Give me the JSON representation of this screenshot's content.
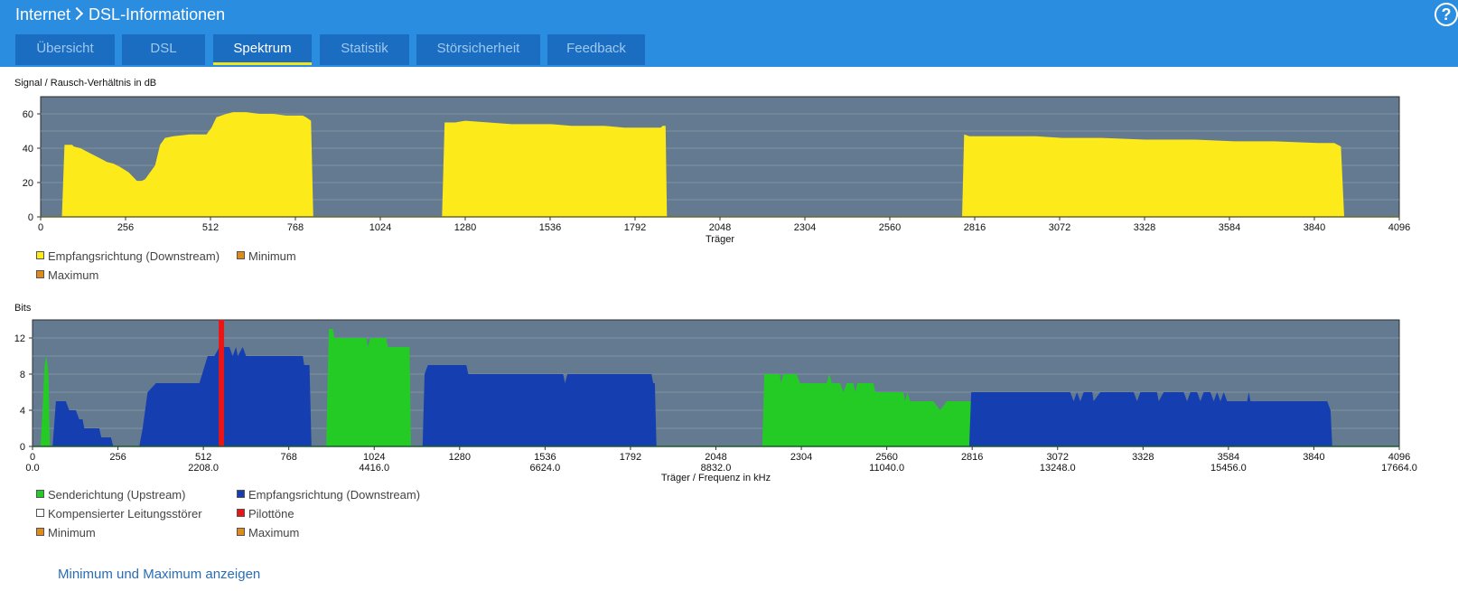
{
  "breadcrumb": {
    "parent": "Internet",
    "current": "DSL-Informationen"
  },
  "help_label": "?",
  "tabs": [
    {
      "label": "Übersicht",
      "active": false
    },
    {
      "label": "DSL",
      "active": false
    },
    {
      "label": "Spektrum",
      "active": true
    },
    {
      "label": "Statistik",
      "active": false
    },
    {
      "label": "Störsicherheit",
      "active": false
    },
    {
      "label": "Feedback",
      "active": false
    }
  ],
  "colors": {
    "header_bg": "#2a8de0",
    "tab_bg": "#1a6dc0",
    "tab_active_underline": "#f3e51a",
    "plot_bg": "#647a90",
    "snr_fill": "#fcea1a",
    "upstream": "#25cb25",
    "downstream": "#153fb1",
    "pilot": "#ec1515",
    "minmax_swatch": "#e08a1c",
    "compensated_swatch": "#ffffff"
  },
  "chart_data": [
    {
      "type": "area",
      "title": "Signal / Rausch-Verhältnis in dB",
      "xlabel": "Träger",
      "ylabel": "",
      "xlim": [
        0,
        4096
      ],
      "ylim": [
        0,
        70
      ],
      "xticks": [
        0,
        256,
        512,
        768,
        1024,
        1280,
        1536,
        1792,
        2048,
        2304,
        2560,
        2816,
        3072,
        3328,
        3584,
        3840,
        4096
      ],
      "yticks": [
        0,
        20,
        40,
        60
      ],
      "grid": true,
      "legend_position": "bottom-left",
      "series": [
        {
          "name": "Empfangsrichtung (Downstream)",
          "color": "#fcea1a",
          "segments": [
            [
              [
                64,
                0
              ],
              [
                72,
                42
              ],
              [
                95,
                42
              ],
              [
                100,
                41
              ],
              [
                120,
                40
              ],
              [
                150,
                37
              ],
              [
                180,
                34
              ],
              [
                200,
                32
              ],
              [
                220,
                31
              ],
              [
                240,
                29
              ],
              [
                265,
                26
              ],
              [
                280,
                23
              ],
              [
                290,
                21
              ],
              [
                305,
                21
              ],
              [
                315,
                22
              ],
              [
                330,
                26
              ],
              [
                345,
                30
              ],
              [
                360,
                42
              ],
              [
                375,
                46
              ],
              [
                400,
                47
              ],
              [
                450,
                48
              ],
              [
                480,
                48
              ],
              [
                500,
                48
              ],
              [
                515,
                52
              ],
              [
                530,
                58
              ],
              [
                545,
                59
              ],
              [
                560,
                60
              ],
              [
                580,
                61
              ],
              [
                620,
                61
              ],
              [
                660,
                60
              ],
              [
                700,
                60
              ],
              [
                740,
                59
              ],
              [
                790,
                59
              ],
              [
                800,
                58
              ],
              [
                815,
                56
              ],
              [
                822,
                0
              ]
            ],
            [
              [
                1210,
                0
              ],
              [
                1218,
                55
              ],
              [
                1250,
                55
              ],
              [
                1280,
                56
              ],
              [
                1350,
                55
              ],
              [
                1420,
                54
              ],
              [
                1540,
                54
              ],
              [
                1600,
                53
              ],
              [
                1700,
                53
              ],
              [
                1760,
                52
              ],
              [
                1870,
                52
              ],
              [
                1875,
                53
              ],
              [
                1884,
                53
              ],
              [
                1888,
                0
              ]
            ],
            [
              [
                2778,
                0
              ],
              [
                2784,
                48
              ],
              [
                2800,
                47
              ],
              [
                2900,
                47
              ],
              [
                3000,
                47
              ],
              [
                3080,
                46
              ],
              [
                3200,
                46
              ],
              [
                3330,
                45
              ],
              [
                3480,
                45
              ],
              [
                3600,
                44
              ],
              [
                3720,
                44
              ],
              [
                3850,
                43
              ],
              [
                3900,
                43
              ],
              [
                3920,
                41
              ],
              [
                3930,
                0
              ]
            ]
          ]
        },
        {
          "name": "Minimum",
          "color": "#e08a1c",
          "values": []
        },
        {
          "name": "Maximum",
          "color": "#e08a1c",
          "values": []
        }
      ]
    },
    {
      "type": "area",
      "title": "Bits",
      "xlabel": "Träger / Frequenz in kHz",
      "ylabel": "",
      "xlim": [
        0,
        4096
      ],
      "ylim": [
        0,
        14
      ],
      "xticks": [
        0,
        256,
        512,
        768,
        1024,
        1280,
        1536,
        1792,
        2048,
        2304,
        2560,
        2816,
        3072,
        3328,
        3584,
        3840,
        4096
      ],
      "xticks_secondary": [
        {
          "at": 0,
          "label": "0.0"
        },
        {
          "at": 512,
          "label": "2208.0"
        },
        {
          "at": 1024,
          "label": "4416.0"
        },
        {
          "at": 1536,
          "label": "6624.0"
        },
        {
          "at": 2048,
          "label": "8832.0"
        },
        {
          "at": 2560,
          "label": "11040.0"
        },
        {
          "at": 3072,
          "label": "13248.0"
        },
        {
          "at": 3584,
          "label": "15456.0"
        },
        {
          "at": 4096,
          "label": "17664.0"
        }
      ],
      "yticks": [
        0,
        4,
        8,
        12
      ],
      "grid": true,
      "legend_position": "bottom-left",
      "series": [
        {
          "name": "Senderichtung (Upstream)",
          "color": "#25cb25",
          "segments": [
            [
              [
                24,
                0
              ],
              [
                30,
                4
              ],
              [
                36,
                9
              ],
              [
                42,
                10
              ],
              [
                48,
                8
              ],
              [
                52,
                0
              ]
            ],
            [
              [
                880,
                0
              ],
              [
                888,
                13
              ],
              [
                900,
                13
              ],
              [
                905,
                12
              ],
              [
                1000,
                12
              ],
              [
                1005,
                11
              ],
              [
                1012,
                12
              ],
              [
                1060,
                12
              ],
              [
                1065,
                11
              ],
              [
                1100,
                11
              ],
              [
                1130,
                11
              ],
              [
                1134,
                0
              ]
            ],
            [
              [
                2187,
                0
              ],
              [
                2193,
                8
              ],
              [
                2240,
                8
              ],
              [
                2243,
                7
              ],
              [
                2250,
                8
              ],
              [
                2290,
                8
              ],
              [
                2300,
                7
              ],
              [
                2350,
                7
              ],
              [
                2380,
                7
              ],
              [
                2388,
                8
              ],
              [
                2395,
                7
              ],
              [
                2420,
                7
              ],
              [
                2430,
                6
              ],
              [
                2440,
                7
              ],
              [
                2460,
                7
              ],
              [
                2466,
                6
              ],
              [
                2472,
                7
              ],
              [
                2520,
                7
              ],
              [
                2526,
                6
              ],
              [
                2600,
                6
              ],
              [
                2610,
                6
              ],
              [
                2615,
                5
              ],
              [
                2622,
                6
              ],
              [
                2630,
                5
              ],
              [
                2700,
                5
              ],
              [
                2720,
                4
              ],
              [
                2740,
                5
              ],
              [
                2850,
                5
              ],
              [
                2854,
                0
              ]
            ]
          ]
        },
        {
          "name": "Empfangsrichtung (Downstream)",
          "color": "#153fb1",
          "segments": [
            [
              [
                60,
                0
              ],
              [
                70,
                5
              ],
              [
                100,
                5
              ],
              [
                110,
                4
              ],
              [
                130,
                4
              ],
              [
                140,
                3
              ],
              [
                150,
                3
              ],
              [
                155,
                2
              ],
              [
                200,
                2
              ],
              [
                206,
                1
              ],
              [
                235,
                1
              ],
              [
                242,
                0
              ]
            ],
            [
              [
                320,
                0
              ],
              [
                330,
                2
              ],
              [
                345,
                6
              ],
              [
                370,
                7
              ],
              [
                500,
                7
              ],
              [
                525,
                10
              ],
              [
                545,
                10
              ],
              [
                560,
                11
              ],
              [
                590,
                11
              ],
              [
                600,
                10
              ],
              [
                610,
                11
              ],
              [
                615,
                10
              ],
              [
                630,
                11
              ],
              [
                640,
                10
              ],
              [
                810,
                10
              ],
              [
                814,
                9
              ],
              [
                830,
                9
              ],
              [
                836,
                0
              ]
            ],
            [
              [
                1169,
                0
              ],
              [
                1175,
                8
              ],
              [
                1185,
                9
              ],
              [
                1200,
                9
              ],
              [
                1300,
                9
              ],
              [
                1306,
                8
              ],
              [
                1590,
                8
              ],
              [
                1596,
                7
              ],
              [
                1603,
                8
              ],
              [
                1855,
                8
              ],
              [
                1860,
                7
              ],
              [
                1865,
                7
              ],
              [
                1870,
                0
              ]
            ],
            [
              [
                2807,
                0
              ],
              [
                2813,
                6
              ],
              [
                2900,
                6
              ],
              [
                3110,
                6
              ],
              [
                3120,
                5
              ],
              [
                3130,
                6
              ],
              [
                3140,
                5
              ],
              [
                3150,
                6
              ],
              [
                3176,
                6
              ],
              [
                3180,
                5
              ],
              [
                3200,
                6
              ],
              [
                3240,
                6
              ],
              [
                3300,
                6
              ],
              [
                3310,
                5
              ],
              [
                3320,
                6
              ],
              [
                3370,
                6
              ],
              [
                3375,
                5
              ],
              [
                3390,
                6
              ],
              [
                3450,
                6
              ],
              [
                3460,
                5
              ],
              [
                3470,
                6
              ],
              [
                3490,
                6
              ],
              [
                3500,
                5
              ],
              [
                3510,
                6
              ],
              [
                3530,
                6
              ],
              [
                3540,
                5
              ],
              [
                3550,
                6
              ],
              [
                3560,
                5
              ],
              [
                3570,
                6
              ],
              [
                3580,
                5
              ],
              [
                3600,
                5
              ],
              [
                3640,
                5
              ],
              [
                3645,
                6
              ],
              [
                3650,
                5
              ],
              [
                3880,
                5
              ],
              [
                3890,
                4
              ],
              [
                3895,
                0
              ]
            ]
          ]
        },
        {
          "name": "Kompensierter Leitungsstörer",
          "color": "#ffffff",
          "values": []
        },
        {
          "name": "Pilottöne",
          "color": "#ec1515",
          "bars": [
            {
              "from": 558,
              "to": 574,
              "value": 14
            }
          ]
        },
        {
          "name": "Minimum",
          "color": "#e08a1c",
          "values": []
        },
        {
          "name": "Maximum",
          "color": "#e08a1c",
          "values": []
        }
      ]
    }
  ],
  "link": {
    "label": "Minimum und Maximum anzeigen"
  }
}
